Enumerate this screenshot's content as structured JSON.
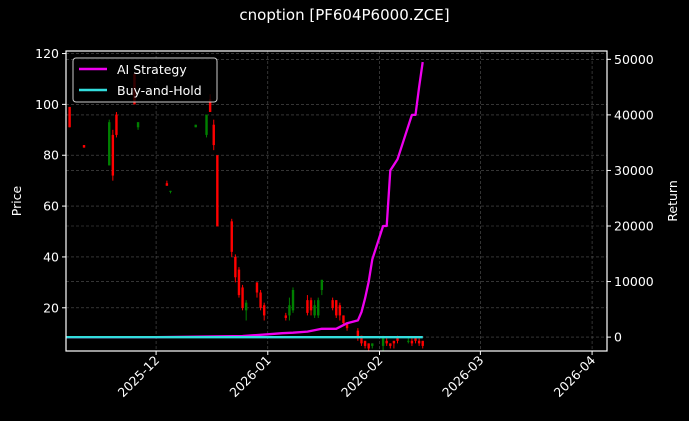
{
  "title": "cnoption [PF604P6000.ZCE]",
  "chart_data": {
    "type": "line",
    "title": "cnoption [PF604P6000.ZCE]",
    "xlabel": "",
    "ylabel": "Price",
    "ylabel_right": "Return",
    "ylim": [
      3,
      121
    ],
    "ylim_right": [
      -2500,
      51500
    ],
    "grid": true,
    "legend_position": "upper left",
    "x_tick_labels": [
      "2025-12",
      "2026-01",
      "2026-02",
      "2026-03",
      "2026-04"
    ],
    "y_ticks_left": [
      20,
      40,
      60,
      80,
      100,
      120
    ],
    "y_ticks_right": [
      0,
      10000,
      20000,
      30000,
      40000,
      50000
    ],
    "legend": [
      {
        "name": "AI Strategy",
        "color": "#ff00ff"
      },
      {
        "name": "Buy-and-Hold",
        "color": "#00e5ee"
      }
    ],
    "colors": {
      "background": "#000000",
      "up_candle": "#008000",
      "down_candle": "#ff0000",
      "grid": "#555555",
      "ai_strategy": "#ee00ee",
      "buy_and_hold": "#33dddd"
    },
    "candles": [
      {
        "date": "2025-11-07",
        "open": 99,
        "close": 91,
        "high": 99,
        "low": 91
      },
      {
        "date": "2025-11-11",
        "open": 84,
        "close": 83,
        "high": 84,
        "low": 83
      },
      {
        "date": "2025-11-18",
        "open": 76,
        "close": 93,
        "high": 94,
        "low": 76
      },
      {
        "date": "2025-11-19",
        "open": 88,
        "close": 72,
        "high": 90,
        "low": 70
      },
      {
        "date": "2025-11-20",
        "open": 96,
        "close": 88,
        "high": 97,
        "low": 87
      },
      {
        "date": "2025-11-25",
        "open": 112,
        "close": 100,
        "high": 112,
        "low": 100
      },
      {
        "date": "2025-11-26",
        "open": 91,
        "close": 93,
        "high": 93,
        "low": 90
      },
      {
        "date": "2025-12-04",
        "open": 69,
        "close": 68,
        "high": 70,
        "low": 68
      },
      {
        "date": "2025-12-05",
        "open": 66,
        "close": 66,
        "high": 66,
        "low": 65
      },
      {
        "date": "2025-12-12",
        "open": 91,
        "close": 92,
        "high": 92,
        "low": 91
      },
      {
        "date": "2025-12-15",
        "open": 88,
        "close": 96,
        "high": 96,
        "low": 87
      },
      {
        "date": "2025-12-16",
        "open": 102,
        "close": 97,
        "high": 104,
        "low": 97
      },
      {
        "date": "2025-12-17",
        "open": 92,
        "close": 84,
        "high": 94,
        "low": 82
      },
      {
        "date": "2025-12-18",
        "open": 80,
        "close": 52,
        "high": 80,
        "low": 52
      },
      {
        "date": "2025-12-22",
        "open": 54,
        "close": 42,
        "high": 55,
        "low": 40
      },
      {
        "date": "2025-12-23",
        "open": 40,
        "close": 32,
        "high": 41,
        "low": 30
      },
      {
        "date": "2025-12-24",
        "open": 35,
        "close": 25,
        "high": 36,
        "low": 24
      },
      {
        "date": "2025-12-25",
        "open": 28,
        "close": 20,
        "high": 29,
        "low": 19
      },
      {
        "date": "2025-12-26",
        "open": 19,
        "close": 22,
        "high": 23,
        "low": 15
      },
      {
        "date": "2025-12-29",
        "open": 30,
        "close": 26,
        "high": 30,
        "low": 24
      },
      {
        "date": "2025-12-30",
        "open": 26,
        "close": 20,
        "high": 27,
        "low": 19
      },
      {
        "date": "2025-12-31",
        "open": 21,
        "close": 17,
        "high": 22,
        "low": 15
      },
      {
        "date": "2026-01-06",
        "open": 17,
        "close": 16,
        "high": 18,
        "low": 15
      },
      {
        "date": "2026-01-07",
        "open": 17,
        "close": 21,
        "high": 24,
        "low": 15
      },
      {
        "date": "2026-01-08",
        "open": 19,
        "close": 27,
        "high": 28,
        "low": 18
      },
      {
        "date": "2026-01-12",
        "open": 23,
        "close": 18,
        "high": 25,
        "low": 17
      },
      {
        "date": "2026-01-13",
        "open": 23,
        "close": 19,
        "high": 24,
        "low": 17
      },
      {
        "date": "2026-01-14",
        "open": 17,
        "close": 21,
        "high": 23,
        "low": 16
      },
      {
        "date": "2026-01-15",
        "open": 17,
        "close": 23,
        "high": 24,
        "low": 16
      },
      {
        "date": "2026-01-16",
        "open": 27,
        "close": 31,
        "high": 31,
        "low": 25
      },
      {
        "date": "2026-01-19",
        "open": 23,
        "close": 20,
        "high": 24,
        "low": 19
      },
      {
        "date": "2026-01-20",
        "open": 23,
        "close": 17,
        "high": 23,
        "low": 16
      },
      {
        "date": "2026-01-21",
        "open": 21,
        "close": 17,
        "high": 22,
        "low": 15
      },
      {
        "date": "2026-01-22",
        "open": 17,
        "close": 14,
        "high": 17,
        "low": 13
      },
      {
        "date": "2026-01-23",
        "open": 14,
        "close": 12,
        "high": 14,
        "low": 11
      },
      {
        "date": "2026-01-26",
        "open": 11,
        "close": 8,
        "high": 12,
        "low": 7
      },
      {
        "date": "2026-01-27",
        "open": 9,
        "close": 6,
        "high": 9,
        "low": 5
      },
      {
        "date": "2026-01-28",
        "open": 7,
        "close": 5,
        "high": 7,
        "low": 4
      },
      {
        "date": "2026-01-29",
        "open": 6,
        "close": 4,
        "high": 6,
        "low": 3
      },
      {
        "date": "2026-01-30",
        "open": 5,
        "close": 6,
        "high": 6,
        "low": 4
      },
      {
        "date": "2026-02-02",
        "open": 5,
        "close": 8,
        "high": 9,
        "low": 3
      },
      {
        "date": "2026-02-03",
        "open": 7,
        "close": 6,
        "high": 8,
        "low": 5
      },
      {
        "date": "2026-02-04",
        "open": 6,
        "close": 5,
        "high": 6,
        "low": 4
      },
      {
        "date": "2026-02-05",
        "open": 7,
        "close": 6,
        "high": 7,
        "low": 4
      },
      {
        "date": "2026-02-06",
        "open": 8,
        "close": 7,
        "high": 9,
        "low": 6
      },
      {
        "date": "2026-02-09",
        "open": 7,
        "close": 7,
        "high": 8,
        "low": 6
      },
      {
        "date": "2026-02-10",
        "open": 7,
        "close": 6,
        "high": 8,
        "low": 5
      },
      {
        "date": "2026-02-11",
        "open": 8,
        "close": 7,
        "high": 8,
        "low": 6
      },
      {
        "date": "2026-02-12",
        "open": 7,
        "close": 6,
        "high": 8,
        "low": 5
      },
      {
        "date": "2026-02-13",
        "open": 7,
        "close": 5,
        "high": 7,
        "low": 4
      }
    ],
    "series": [
      {
        "name": "AI Strategy",
        "x": [
          "2025-11-06",
          "2025-12-01",
          "2025-12-25",
          "2026-01-01",
          "2026-01-05",
          "2026-01-08",
          "2026-01-12",
          "2026-01-16",
          "2026-01-20",
          "2026-01-23",
          "2026-01-26",
          "2026-01-27",
          "2026-01-28",
          "2026-01-29",
          "2026-01-30",
          "2026-02-02",
          "2026-02-03",
          "2026-02-04",
          "2026-02-05",
          "2026-02-06",
          "2026-02-09",
          "2026-02-10",
          "2026-02-11",
          "2026-02-12",
          "2026-02-13"
        ],
        "values": [
          0,
          0,
          200,
          500,
          700,
          800,
          1000,
          1500,
          1500,
          2500,
          3000,
          4500,
          7000,
          10000,
          14000,
          20000,
          20000,
          30000,
          31000,
          32000,
          38000,
          40000,
          40000,
          45000,
          49500
        ]
      },
      {
        "name": "Buy-and-Hold",
        "x": [
          "2025-11-06",
          "2026-02-13"
        ],
        "values": [
          0,
          0
        ]
      }
    ]
  }
}
